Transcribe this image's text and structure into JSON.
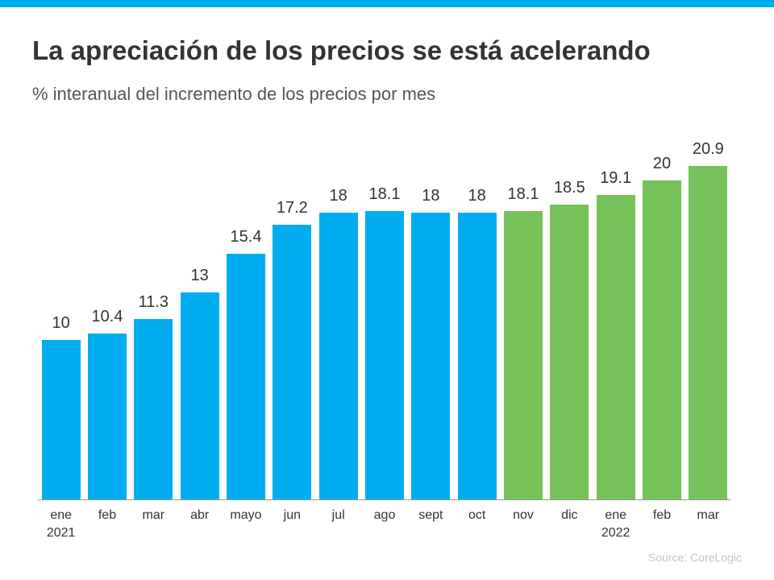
{
  "chart_data": {
    "type": "bar",
    "title": "La apreciación de los precios se está acelerando",
    "subtitle": "% interanual del incremento de los precios por mes",
    "categories": [
      "ene\n2021",
      "feb",
      "mar",
      "abr",
      "mayo",
      "jun",
      "jul",
      "ago",
      "sept",
      "oct",
      "nov",
      "dic",
      "ene\n2022",
      "feb",
      "mar"
    ],
    "values": [
      10,
      10.4,
      11.3,
      13,
      15.4,
      17.2,
      18,
      18.1,
      18,
      18,
      18.1,
      18.5,
      19.1,
      20,
      20.9
    ],
    "colors": [
      "#00aeef",
      "#00aeef",
      "#00aeef",
      "#00aeef",
      "#00aeef",
      "#00aeef",
      "#00aeef",
      "#00aeef",
      "#00aeef",
      "#00aeef",
      "#76c25a",
      "#76c25a",
      "#76c25a",
      "#76c25a",
      "#76c25a"
    ],
    "source": "Source: CoreLogic"
  }
}
